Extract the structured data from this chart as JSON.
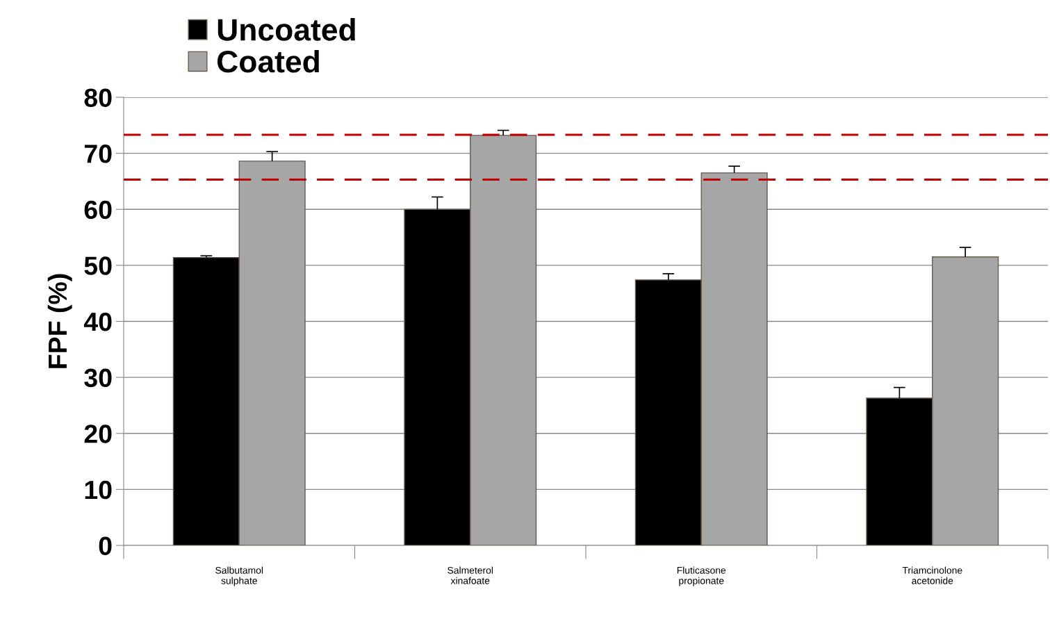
{
  "chart_data": {
    "type": "bar",
    "ylabel": "FPF (%)",
    "categories": [
      "Salbutamol\nsulphate",
      "Salmeterol\nxinafoate",
      "Fluticasone\npropionate",
      "Triamcinolone\nacetonide"
    ],
    "series": [
      {
        "name": "Uncoated",
        "color": "#000000",
        "values": [
          51.4,
          60.0,
          47.4,
          26.3
        ],
        "errors": [
          [
            51.4,
            51.7
          ],
          [
            60.0,
            62.2
          ],
          [
            47.4,
            48.5
          ],
          [
            26.3,
            28.2
          ]
        ]
      },
      {
        "name": "Coated",
        "color": "#a6a6a6",
        "values": [
          68.6,
          73.2,
          66.5,
          51.5
        ],
        "errors": [
          [
            68.6,
            70.3
          ],
          [
            73.2,
            74.1
          ],
          [
            66.5,
            67.7
          ],
          [
            51.5,
            53.2
          ]
        ]
      }
    ],
    "ylim": [
      0,
      80
    ],
    "yticks": [
      0,
      10,
      20,
      30,
      40,
      50,
      60,
      70,
      80
    ],
    "grid": "y",
    "legend": "top left",
    "ref_lines": [
      {
        "axis": "y",
        "value": 73.3,
        "color": "#c00000",
        "line_style": "dashed"
      },
      {
        "axis": "y",
        "value": 65.3,
        "color": "#c00000",
        "line_style": "dashed"
      }
    ]
  }
}
